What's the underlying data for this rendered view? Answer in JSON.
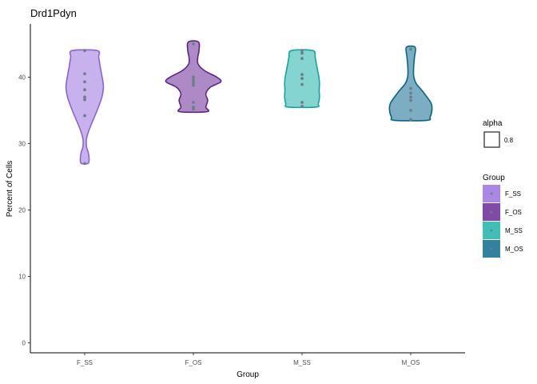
{
  "chart_data": {
    "type": "violin",
    "title": "Drd1Pdyn",
    "xlabel": "Group",
    "ylabel": "Percent of Cells",
    "ylim": [
      -1.5,
      48
    ],
    "yticks": [
      0,
      10,
      20,
      30,
      40
    ],
    "grid": false,
    "legend_placement": "right",
    "categories": [
      "F_SS",
      "F_OS",
      "M_SS",
      "M_OS"
    ],
    "groups": [
      {
        "name": "F_SS",
        "fill": "#9b72e0",
        "stroke": "#8a63d2",
        "min": 27.0,
        "max": 44.0,
        "profile": [
          [
            27.0,
            0.1
          ],
          [
            27.5,
            0.14
          ],
          [
            28.5,
            0.12
          ],
          [
            29.5,
            0.06
          ],
          [
            30.5,
            0.05
          ],
          [
            31.5,
            0.1
          ],
          [
            33.0,
            0.22
          ],
          [
            35.0,
            0.4
          ],
          [
            37.0,
            0.55
          ],
          [
            38.5,
            0.6
          ],
          [
            40.0,
            0.56
          ],
          [
            41.5,
            0.5
          ],
          [
            43.0,
            0.45
          ],
          [
            44.0,
            0.4
          ]
        ],
        "points": [
          27.0,
          34.2,
          36.6,
          37.0,
          38.1,
          39.3,
          40.5,
          44.0
        ]
      },
      {
        "name": "F_OS",
        "fill": "#6a2a96",
        "stroke": "#5d2488",
        "min": 34.8,
        "max": 45.3,
        "profile": [
          [
            34.8,
            0.44
          ],
          [
            35.5,
            0.4
          ],
          [
            36.5,
            0.46
          ],
          [
            37.5,
            0.4
          ],
          [
            38.5,
            0.55
          ],
          [
            39.3,
            0.88
          ],
          [
            40.0,
            0.75
          ],
          [
            41.0,
            0.35
          ],
          [
            42.0,
            0.15
          ],
          [
            43.0,
            0.14
          ],
          [
            44.0,
            0.18
          ],
          [
            45.3,
            0.16
          ]
        ],
        "points": [
          35.2,
          35.5,
          36.2,
          38.8,
          39.2,
          39.6,
          40.0,
          45.0
        ]
      },
      {
        "name": "M_SS",
        "fill": "#1fb3ab",
        "stroke": "#17a39b",
        "min": 35.5,
        "max": 44.0,
        "profile": [
          [
            35.5,
            0.45
          ],
          [
            36.0,
            0.52
          ],
          [
            37.0,
            0.56
          ],
          [
            38.0,
            0.55
          ],
          [
            39.0,
            0.56
          ],
          [
            40.0,
            0.54
          ],
          [
            41.0,
            0.5
          ],
          [
            42.0,
            0.46
          ],
          [
            43.0,
            0.42
          ],
          [
            44.0,
            0.34
          ]
        ],
        "points": [
          35.6,
          36.2,
          38.9,
          39.8,
          40.4,
          42.8,
          43.6,
          44.0
        ]
      },
      {
        "name": "M_OS",
        "fill": "#0f6b8f",
        "stroke": "#0b6386",
        "min": 33.5,
        "max": 44.5,
        "profile": [
          [
            33.5,
            0.52
          ],
          [
            34.0,
            0.62
          ],
          [
            35.0,
            0.68
          ],
          [
            36.0,
            0.66
          ],
          [
            37.0,
            0.52
          ],
          [
            38.0,
            0.36
          ],
          [
            39.0,
            0.18
          ],
          [
            40.0,
            0.1
          ],
          [
            41.0,
            0.09
          ],
          [
            42.0,
            0.1
          ],
          [
            43.0,
            0.12
          ],
          [
            44.5,
            0.14
          ]
        ],
        "points": [
          33.6,
          35.0,
          36.5,
          37.0,
          37.6,
          38.3,
          44.2
        ]
      }
    ],
    "point_color": "#6b7f8a"
  },
  "legend": {
    "alpha": {
      "title": "alpha",
      "label": "0.8"
    },
    "group": {
      "title": "Group",
      "items": [
        "F_SS",
        "F_OS",
        "M_SS",
        "M_OS"
      ]
    }
  }
}
